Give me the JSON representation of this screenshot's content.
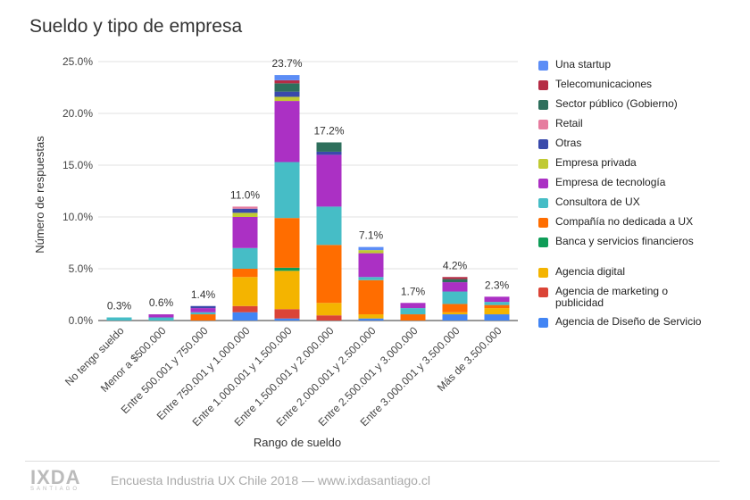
{
  "chart_data": {
    "type": "bar",
    "stacked": true,
    "title": "Sueldo y tipo de empresa",
    "xlabel": "Rango de sueldo",
    "ylabel": "Número de respuestas",
    "ylim": [
      0,
      25
    ],
    "yticks": [
      "0.0%",
      "5.0%",
      "10.0%",
      "15.0%",
      "20.0%",
      "25.0%"
    ],
    "grid": true,
    "legend_position": "right",
    "categories": [
      "No tengo sueldo",
      "Menor a $500.000",
      "Entre 500.001 y 750.000",
      "Entre 750.001 y 1.000.000",
      "Entre 1.000.001 y 1.500.000",
      "Entre 1.500.001 y 2.000.000",
      "Entre 2.000.001 y 2.500.000",
      "Entre 2.500.001 y 3.000.000",
      "Entre 3.000.001 y 3.500.000",
      "Más de 3.500.000"
    ],
    "totals": [
      0.3,
      0.6,
      1.4,
      11.0,
      23.7,
      17.2,
      7.1,
      1.7,
      4.2,
      2.3
    ],
    "total_labels": [
      "0.3%",
      "0.6%",
      "1.4%",
      "11.0%",
      "23.7%",
      "17.2%",
      "7.1%",
      "1.7%",
      "4.2%",
      "2.3%"
    ],
    "series": [
      {
        "name": "Agencia de Diseño de Servicio",
        "color": "#4285f4",
        "values": [
          0,
          0,
          0,
          0.8,
          0.2,
          0,
          0.2,
          0,
          0.6,
          0.6
        ]
      },
      {
        "name": "Agencia de marketing o publicidad",
        "color": "#db4437",
        "values": [
          0,
          0,
          0,
          0.6,
          0.9,
          0.5,
          0,
          0,
          0,
          0
        ]
      },
      {
        "name": "Agencia digital",
        "color": "#f4b400",
        "values": [
          0,
          0,
          0,
          2.8,
          3.7,
          1.2,
          0.4,
          0,
          0.2,
          0.6
        ]
      },
      {
        "name": "Banca y servicios financieros",
        "color": "#0f9d58",
        "values": [
          0,
          0,
          0,
          0,
          0.3,
          0,
          0,
          0,
          0,
          0
        ]
      },
      {
        "name": "Compañía no dedicada a UX",
        "color": "#ff6d00",
        "values": [
          0,
          0,
          0.6,
          0.8,
          4.8,
          5.6,
          3.3,
          0.6,
          0.8,
          0.3
        ]
      },
      {
        "name": "Consultora de UX",
        "color": "#46bdc6",
        "values": [
          0.3,
          0.3,
          0.2,
          2.0,
          5.4,
          3.7,
          0.3,
          0.6,
          1.2,
          0.3
        ]
      },
      {
        "name": "Empresa de tecnología",
        "color": "#ab30c4",
        "values": [
          0,
          0.3,
          0.4,
          3.0,
          5.9,
          5.0,
          2.3,
          0.5,
          0.9,
          0.5
        ]
      },
      {
        "name": "Empresa privada",
        "color": "#c0ca33",
        "values": [
          0,
          0,
          0,
          0.4,
          0.4,
          0,
          0.3,
          0,
          0,
          0
        ]
      },
      {
        "name": "Otras",
        "color": "#3949ab",
        "values": [
          0,
          0,
          0.2,
          0.4,
          0.5,
          0.3,
          0,
          0,
          0,
          0
        ]
      },
      {
        "name": "Retail",
        "color": "#e67c9f",
        "values": [
          0,
          0,
          0,
          0.2,
          0,
          0,
          0,
          0,
          0,
          0
        ]
      },
      {
        "name": "Sector público (Gobierno)",
        "color": "#2e6f5c",
        "values": [
          0,
          0,
          0,
          0,
          0.8,
          0.9,
          0,
          0,
          0.3,
          0
        ]
      },
      {
        "name": "Telecomunicaciones",
        "color": "#b52c45",
        "values": [
          0,
          0,
          0,
          0,
          0.3,
          0,
          0,
          0,
          0.2,
          0
        ]
      },
      {
        "name": "Una startup",
        "color": "#5c8df6",
        "values": [
          0,
          0,
          0,
          0,
          0.5,
          0,
          0.3,
          0,
          0,
          0
        ]
      }
    ]
  },
  "legend": [
    "Una startup",
    "Telecomunicaciones",
    "Sector público (Gobierno)",
    "Retail",
    "Otras",
    "Empresa privada",
    "Empresa de tecnología",
    "Consultora de UX",
    "Compañía no dedicada a UX",
    "Banca y servicios financieros",
    "Agencia digital",
    "Agencia de marketing o publicidad",
    "Agencia de Diseño de Servicio"
  ],
  "footer": {
    "logo": "IXDA",
    "logo_sub": "SANTIAGO",
    "text": "Encuesta Industria UX Chile 2018 — www.ixdasantiago.cl"
  }
}
